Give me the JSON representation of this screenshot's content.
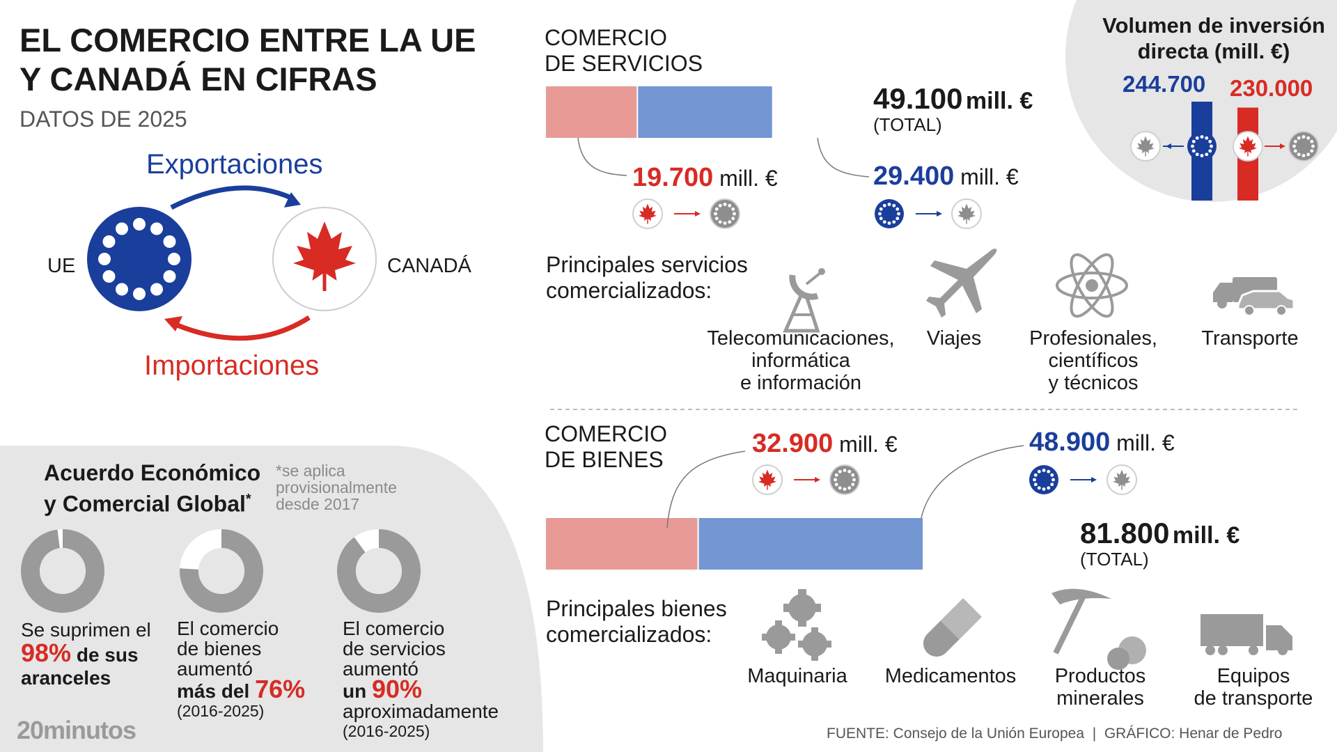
{
  "header": {
    "title_line1": "EL COMERCIO ENTRE LA UE",
    "title_line2": "Y CANADÁ EN CIFRAS",
    "subtitle": "DATOS DE 2025"
  },
  "flow": {
    "exports_label": "Exportaciones",
    "imports_label": "Importaciones",
    "eu_label": "UE",
    "canada_label": "CANADÁ"
  },
  "services": {
    "title_line1": "COMERCIO",
    "title_line2": "DE SERVICIOS",
    "total_value": "49.100",
    "total_unit": "mill. €",
    "total_note": "(TOTAL)",
    "left_value": "19.700",
    "left_unit": "mill. €",
    "right_value": "29.400",
    "right_unit": "mill. €",
    "main_title_line1": "Principales servicios",
    "main_title_line2": "comercializados:",
    "items": [
      {
        "label_lines": [
          "Telecomunicaciones,",
          "informática",
          "e información"
        ],
        "icon": "satellite-dish-icon"
      },
      {
        "label_lines": [
          "Viajes"
        ],
        "icon": "airplane-icon"
      },
      {
        "label_lines": [
          "Profesionales,",
          "científicos",
          "y técnicos"
        ],
        "icon": "atom-icon"
      },
      {
        "label_lines": [
          "Transporte"
        ],
        "icon": "truck-car-icon"
      }
    ]
  },
  "goods": {
    "title_line1": "COMERCIO",
    "title_line2": "DE BIENES",
    "total_value": "81.800",
    "total_unit": "mill. €",
    "total_note": "(TOTAL)",
    "left_value": "32.900",
    "left_unit": "mill. €",
    "right_value": "48.900",
    "right_unit": "mill. €",
    "main_title_line1": "Principales bienes",
    "main_title_line2": "comercializados:",
    "items": [
      {
        "label_lines": [
          "Maquinaria"
        ],
        "icon": "gears-icon"
      },
      {
        "label_lines": [
          "Medicamentos"
        ],
        "icon": "pill-icon"
      },
      {
        "label_lines": [
          "Productos",
          "minerales"
        ],
        "icon": "pickaxe-icon"
      },
      {
        "label_lines": [
          "Equipos",
          "de transporte"
        ],
        "icon": "truck-icon"
      }
    ]
  },
  "investment": {
    "title_line1": "Volumen de inversión",
    "title_line2": "directa (mill. €)",
    "eu_value": "244.700",
    "ca_value": "230.000"
  },
  "agreement": {
    "title_line1": "Acuerdo Económico",
    "title_line2": "y Comercial Global",
    "asterisk": "*",
    "note_line1": "*se aplica",
    "note_line2": "provisionalmente",
    "note_line3": "desde 2017",
    "stat1": {
      "line1": "Se suprimen el",
      "pct": "98%",
      "tail": "de sus",
      "line3": "aranceles"
    },
    "stat2": {
      "line1": "El comercio",
      "line2": "de bienes",
      "line3": "aumentó",
      "pre": "más del",
      "pct": "76%",
      "period": "(2016-2025)"
    },
    "stat3": {
      "line1": "El comercio",
      "line2": "de servicios",
      "line3": "aumentó",
      "pre": "un",
      "pct": "90%",
      "line5": "aproximadamente",
      "period": "(2016-2025)"
    }
  },
  "footer": {
    "source": "FUENTE: Consejo de la Unión Europea  |  GRÁFICO: Henar de Pedro",
    "brand": "20minutos"
  },
  "colors": {
    "eu_blue": "#1a3e9b",
    "canada_red": "#d72b24",
    "bar_red": "#e89a97",
    "bar_blue": "#7496d2",
    "panel_grey": "#e6e6e6",
    "icon_grey": "#9a9a9a"
  },
  "chart_data": [
    {
      "type": "bar",
      "title": "COMERCIO DE SERVICIOS",
      "stacked": true,
      "categories": [
        "Canadá → UE",
        "UE → Canadá"
      ],
      "values": [
        19700,
        29400
      ],
      "total": 49100,
      "unit": "mill. €"
    },
    {
      "type": "bar",
      "title": "COMERCIO DE BIENES",
      "stacked": true,
      "categories": [
        "Canadá → UE",
        "UE → Canadá"
      ],
      "values": [
        32900,
        48900
      ],
      "total": 81800,
      "unit": "mill. €"
    },
    {
      "type": "bar",
      "title": "Volumen de inversión directa (mill. €)",
      "categories": [
        "UE → Canadá",
        "Canadá → UE"
      ],
      "values": [
        244700,
        230000
      ],
      "unit": "mill. €"
    },
    {
      "type": "pie",
      "title": "Acuerdo Económico y Comercial Global",
      "series": [
        {
          "values": [
            98,
            2
          ]
        },
        {
          "values": [
            76,
            24
          ]
        },
        {
          "values": [
            90,
            10
          ]
        }
      ]
    }
  ]
}
